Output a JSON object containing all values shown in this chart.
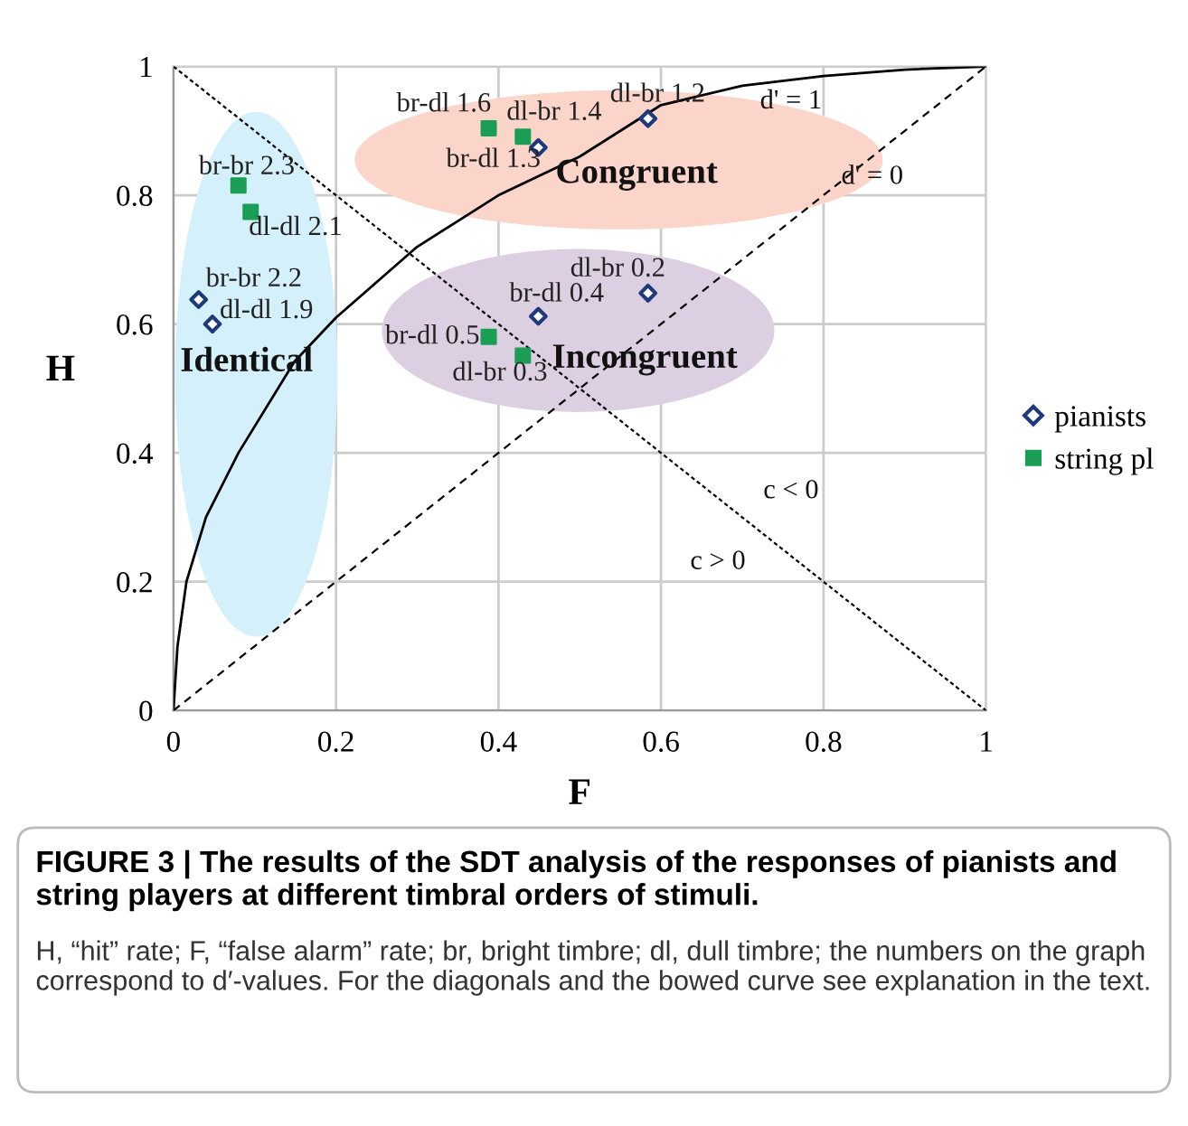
{
  "chart_data": {
    "type": "scatter",
    "xlabel": "F",
    "ylabel": "H",
    "xlim": [
      0,
      1
    ],
    "ylim": [
      0,
      1
    ],
    "xticks": [
      0,
      0.2,
      0.4,
      0.6,
      0.8,
      1
    ],
    "yticks": [
      0,
      0.2,
      0.4,
      0.6,
      0.8,
      1
    ],
    "grid": true,
    "legend": "right",
    "series": [
      {
        "type": "line",
        "color": "#000000",
        "line_style": "solid",
        "marker": "none",
        "x": [
          0,
          0.005,
          0.016,
          0.04,
          0.08,
          0.149,
          0.2,
          0.3,
          0.4,
          0.5,
          0.6,
          0.7,
          0.8,
          0.9,
          1
        ],
        "values": [
          0,
          0.1,
          0.2,
          0.3,
          0.4,
          0.542,
          0.61,
          0.72,
          0.8,
          0.86,
          0.94,
          0.97,
          0.985,
          0.995,
          1
        ]
      },
      {
        "type": "line",
        "color": "#000000",
        "line_style": "dashed",
        "marker": "none",
        "x": [
          0,
          1
        ],
        "values": [
          0,
          1
        ]
      },
      {
        "type": "line",
        "color": "#000000",
        "line_style": "dotted",
        "marker": "none",
        "x": [
          0,
          1
        ],
        "values": [
          1,
          0
        ]
      },
      {
        "name": "pianists",
        "color": "#1f3a7a",
        "marker": "diamond",
        "x": [
          0.031,
          0.048,
          0.449,
          0.584,
          0.449,
          0.584
        ],
        "values": [
          0.638,
          0.6,
          0.874,
          0.919,
          0.612,
          0.648
        ],
        "value_labels": [
          "br-br 2.2",
          "dl-dl 1.9",
          "br-dl 1.3",
          "dl-br 1.2",
          "br-dl 0.4",
          "dl-br 0.2"
        ]
      },
      {
        "name": "string pl",
        "color": "#1a9e55",
        "marker": "square",
        "x": [
          0.08,
          0.095,
          0.388,
          0.43,
          0.388,
          0.43
        ],
        "values": [
          0.815,
          0.774,
          0.904,
          0.891,
          0.58,
          0.551
        ],
        "value_labels": [
          "br-br 2.3",
          "dl-dl 2.1",
          "br-dl 1.6",
          "dl-br 1.4",
          "br-dl 0.5",
          "dl-br 0.3"
        ]
      }
    ],
    "annotations": [
      "Identical",
      "Congruent",
      "Incongruent",
      "d' = 1",
      "d' = 0",
      "c < 0",
      "c > 0",
      "FIGURE 3 | The results of the SDT analysis of the responses of pianists and string players at different timbral orders of stimuli.",
      "H, “hit” rate; F, “false alarm” rate; br, bright timbre; dl, dull timbre; the numbers on the graph correspond to d′-values. For the diagonals and the bowed curve see explanation in the text."
    ]
  }
}
